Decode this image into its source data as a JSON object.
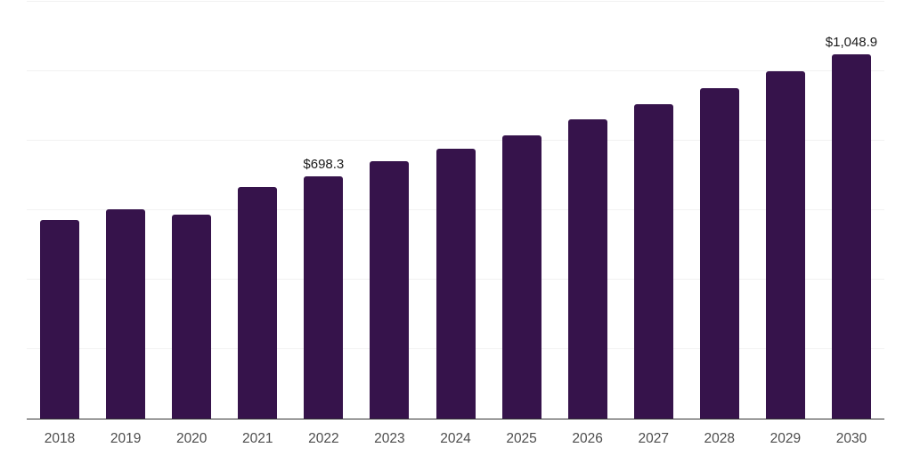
{
  "chart_data": {
    "type": "bar",
    "categories": [
      "2018",
      "2019",
      "2020",
      "2021",
      "2022",
      "2023",
      "2024",
      "2025",
      "2026",
      "2027",
      "2028",
      "2029",
      "2030"
    ],
    "values": [
      571.9,
      602.6,
      587.2,
      666.7,
      698.3,
      741.0,
      776.9,
      815.4,
      861.5,
      905.1,
      951.2,
      1000.0,
      1048.9
    ],
    "data_labels": {
      "2022": "$698.3",
      "2030": "$1,048.9"
    },
    "title": "",
    "xlabel": "",
    "ylabel": "",
    "ylim": [
      0,
      1200
    ],
    "grid_step": 200,
    "grid_on": true,
    "legend": "none",
    "bar_color": "#36134b",
    "grid_color": "#f2f2f2",
    "axis_line_color": "#333333",
    "tick_label_color": "#4d4d4d",
    "data_label_color": "#1a1a1a"
  }
}
